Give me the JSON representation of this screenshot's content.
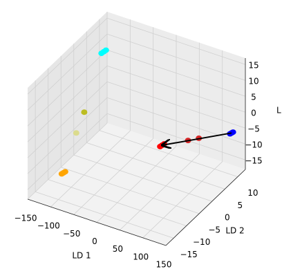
{
  "chart_data": {
    "type": "scatter3d",
    "x_label": "LD 1",
    "y_label": "LD 2",
    "z_label": "L",
    "xlim": [
      -150,
      150
    ],
    "ylim": [
      -18,
      13
    ],
    "zlim": [
      -18,
      17
    ],
    "xticks": [
      {
        "value": -150,
        "label": "−150"
      },
      {
        "value": -100,
        "label": "−100"
      },
      {
        "value": -50,
        "label": "−50"
      },
      0,
      50,
      100,
      150
    ],
    "yticks": [
      {
        "value": -15,
        "label": "−15"
      },
      {
        "value": -10,
        "label": "−10"
      },
      {
        "value": -5,
        "label": "−5"
      },
      0,
      5,
      10
    ],
    "zticks": [
      {
        "value": -15,
        "label": "−15"
      },
      {
        "value": -10,
        "label": "−10"
      },
      {
        "value": -5,
        "label": "−5"
      },
      0,
      5,
      10,
      15
    ],
    "grid": true,
    "series": [
      {
        "color": "#00ffff",
        "x": [
          -100,
          -99,
          -98
        ],
        "y": [
          1.8,
          2.5,
          3.2
        ],
        "z": [
          15,
          15,
          15
        ]
      },
      {
        "color": "#ffa500",
        "x": [
          -95,
          -94,
          -93
        ],
        "y": [
          -14.6,
          -14.1,
          -13.6
        ],
        "z": [
          -10,
          -10,
          -10
        ]
      },
      {
        "color": "#bcbd22",
        "x": [
          -109
        ],
        "y": [
          -3.3
        ],
        "z": [
          0
        ]
      },
      {
        "color": "#dbdb8d",
        "x": [
          -103
        ],
        "y": [
          -7.5
        ],
        "z": [
          -3
        ]
      },
      {
        "color": "#0000ff",
        "x": [
          119,
          120,
          121
        ],
        "y": [
          12.6,
          13,
          13.4
        ],
        "z": [
          -8,
          -8,
          -8
        ]
      },
      {
        "color": "#ff0000",
        "x": [
          44,
          45,
          46
        ],
        "y": [
          -1.2,
          -0.6,
          0
        ],
        "z": [
          -5,
          -5,
          -5
        ]
      },
      {
        "color": "#d62728",
        "x": [
          84,
          103
        ],
        "y": [
          2.5,
          3.3
        ],
        "z": [
          -4,
          -3
        ]
      }
    ],
    "arrow": {
      "color": "#000000",
      "x": [
        120,
        45
      ],
      "y": [
        13,
        -0.6
      ],
      "z": [
        -8,
        -5
      ]
    }
  }
}
